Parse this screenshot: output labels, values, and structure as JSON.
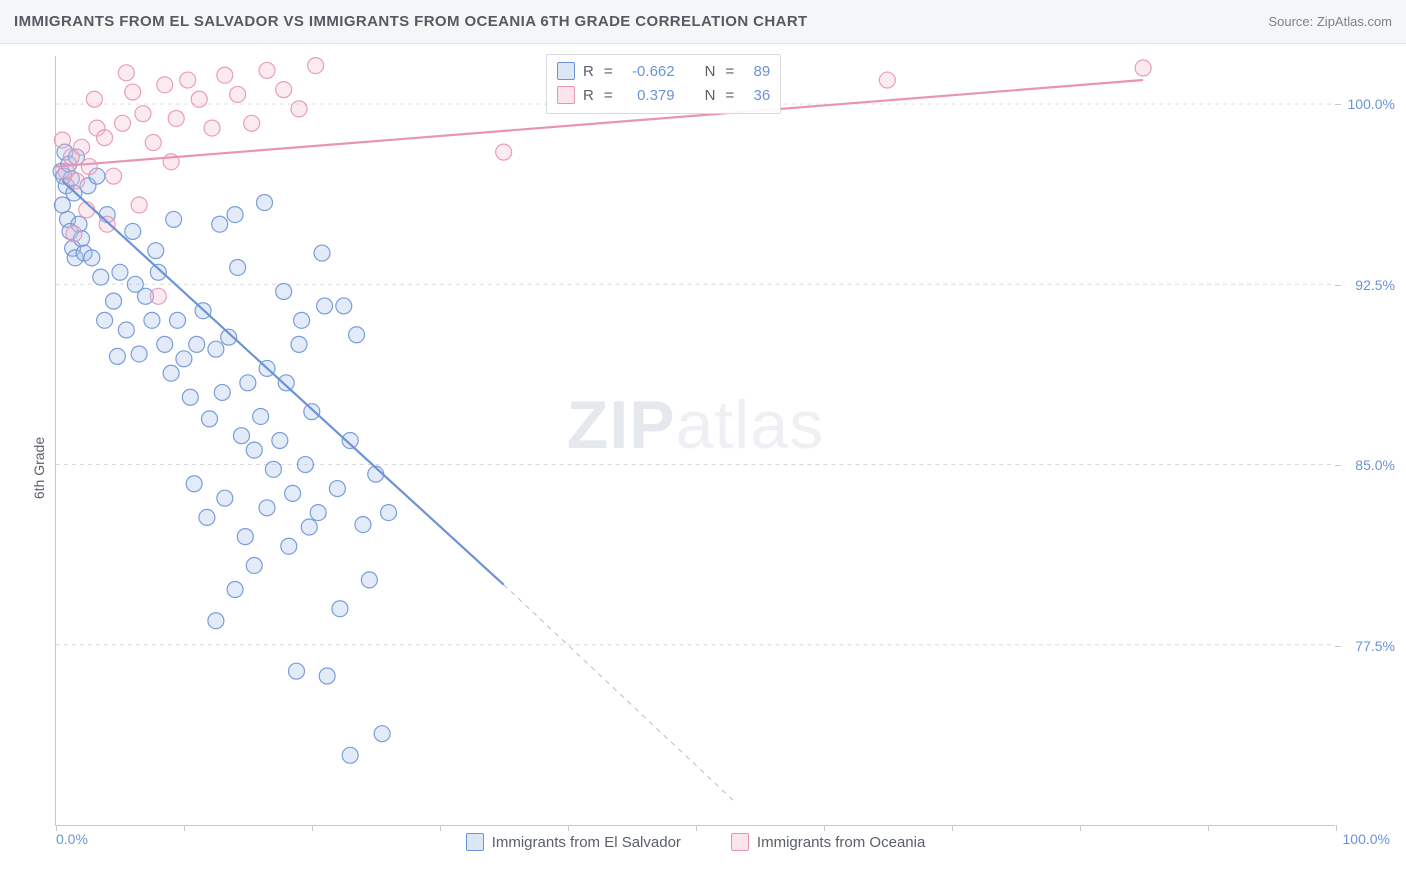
{
  "header": {
    "title": "IMMIGRANTS FROM EL SALVADOR VS IMMIGRANTS FROM OCEANIA 6TH GRADE CORRELATION CHART",
    "source": "Source: ZipAtlas.com"
  },
  "chart": {
    "type": "scatter",
    "ylabel": "6th Grade",
    "background_color": "#ffffff",
    "grid_color": "#d7d9dc",
    "axis_color": "#c5c9cf",
    "tick_label_color": "#6b93d6",
    "label_color": "#5a6068",
    "label_fontsize": 14,
    "xlim": [
      0,
      100
    ],
    "ylim": [
      70,
      102
    ],
    "xticks": [
      0,
      10,
      20,
      30,
      40,
      50,
      60,
      70,
      80,
      90,
      100
    ],
    "xtick_labels": {
      "0": "0.0%",
      "100": "100.0%"
    },
    "yticks": [
      77.5,
      85.0,
      92.5,
      100.0
    ],
    "ytick_labels": [
      "77.5%",
      "85.0%",
      "92.5%",
      "100.0%"
    ],
    "marker_radius": 8,
    "marker_fill_opacity": 0.32,
    "marker_stroke_opacity": 0.9,
    "trend_line_width": 2.2,
    "trend_dash_width": 1,
    "watermark": {
      "bold": "ZIP",
      "rest": "atlas"
    }
  },
  "series": [
    {
      "id": "el_salvador",
      "label": "Immigrants from El Salvador",
      "color": "#6b93d6",
      "fill_color": "#a7c2e8",
      "R": "-0.662",
      "N": "89",
      "trend": {
        "x1": 0.5,
        "y1": 96.8,
        "x2_solid": 35,
        "y2_solid": 80.0,
        "x2_dash": 53,
        "y2_dash": 71.0
      },
      "points": [
        [
          0.4,
          97.2
        ],
        [
          0.6,
          97.0
        ],
        [
          0.8,
          96.6
        ],
        [
          0.7,
          98.0
        ],
        [
          1.0,
          97.5
        ],
        [
          1.2,
          96.9
        ],
        [
          1.4,
          96.3
        ],
        [
          1.6,
          97.8
        ],
        [
          0.5,
          95.8
        ],
        [
          0.9,
          95.2
        ],
        [
          1.1,
          94.7
        ],
        [
          1.3,
          94.0
        ],
        [
          1.5,
          93.6
        ],
        [
          1.8,
          95.0
        ],
        [
          2.0,
          94.4
        ],
        [
          2.2,
          93.8
        ],
        [
          2.5,
          96.6
        ],
        [
          2.8,
          93.6
        ],
        [
          3.2,
          97.0
        ],
        [
          3.5,
          92.8
        ],
        [
          4.0,
          95.4
        ],
        [
          4.5,
          91.8
        ],
        [
          5.0,
          93.0
        ],
        [
          5.5,
          90.6
        ],
        [
          6.0,
          94.7
        ],
        [
          6.5,
          89.6
        ],
        [
          7.0,
          92.0
        ],
        [
          7.5,
          91.0
        ],
        [
          8.0,
          93.0
        ],
        [
          8.5,
          90.0
        ],
        [
          9.0,
          88.8
        ],
        [
          9.5,
          91.0
        ],
        [
          10.0,
          89.4
        ],
        [
          10.5,
          87.8
        ],
        [
          11.0,
          90.0
        ],
        [
          11.5,
          91.4
        ],
        [
          12.0,
          86.9
        ],
        [
          12.5,
          89.8
        ],
        [
          13.0,
          88.0
        ],
        [
          13.5,
          90.3
        ],
        [
          14.0,
          95.4
        ],
        [
          14.5,
          86.2
        ],
        [
          15.0,
          88.4
        ],
        [
          15.5,
          85.6
        ],
        [
          16.0,
          87.0
        ],
        [
          16.5,
          89.0
        ],
        [
          17.0,
          84.8
        ],
        [
          17.5,
          86.0
        ],
        [
          18.0,
          88.4
        ],
        [
          18.5,
          83.8
        ],
        [
          19.0,
          90.0
        ],
        [
          19.5,
          85.0
        ],
        [
          20.0,
          87.2
        ],
        [
          20.5,
          83.0
        ],
        [
          21.0,
          91.6
        ],
        [
          22.0,
          84.0
        ],
        [
          23.0,
          86.0
        ],
        [
          12.8,
          95.0
        ],
        [
          14.2,
          93.2
        ],
        [
          16.3,
          95.9
        ],
        [
          17.8,
          92.2
        ],
        [
          19.2,
          91.0
        ],
        [
          20.8,
          93.8
        ],
        [
          22.5,
          91.6
        ],
        [
          23.5,
          90.4
        ],
        [
          24.0,
          82.5
        ],
        [
          25.0,
          84.6
        ],
        [
          26.0,
          83.0
        ],
        [
          10.8,
          84.2
        ],
        [
          11.8,
          82.8
        ],
        [
          13.2,
          83.6
        ],
        [
          14.8,
          82.0
        ],
        [
          16.5,
          83.2
        ],
        [
          18.2,
          81.6
        ],
        [
          19.8,
          82.4
        ],
        [
          15.5,
          80.8
        ],
        [
          18.8,
          76.4
        ],
        [
          21.2,
          76.2
        ],
        [
          23.0,
          72.9
        ],
        [
          25.5,
          73.8
        ],
        [
          12.5,
          78.5
        ],
        [
          14.0,
          79.8
        ],
        [
          22.2,
          79.0
        ],
        [
          24.5,
          80.2
        ],
        [
          3.8,
          91.0
        ],
        [
          4.8,
          89.5
        ],
        [
          6.2,
          92.5
        ],
        [
          7.8,
          93.9
        ],
        [
          9.2,
          95.2
        ]
      ]
    },
    {
      "id": "oceania",
      "label": "Immigrants from Oceania",
      "color": "#e795b3",
      "fill_color": "#f3bfd0",
      "R": "0.379",
      "N": "36",
      "trend": {
        "x1": 0,
        "y1": 97.4,
        "x2_solid": 85,
        "y2_solid": 101.0,
        "x2_dash": 85,
        "y2_dash": 101.0
      },
      "points": [
        [
          0.8,
          97.2
        ],
        [
          1.2,
          97.8
        ],
        [
          1.6,
          96.8
        ],
        [
          2.0,
          98.2
        ],
        [
          2.6,
          97.4
        ],
        [
          3.2,
          99.0
        ],
        [
          3.8,
          98.6
        ],
        [
          4.5,
          97.0
        ],
        [
          5.2,
          99.2
        ],
        [
          6.0,
          100.5
        ],
        [
          6.8,
          99.6
        ],
        [
          7.6,
          98.4
        ],
        [
          8.5,
          100.8
        ],
        [
          9.4,
          99.4
        ],
        [
          10.3,
          101.0
        ],
        [
          11.2,
          100.2
        ],
        [
          12.2,
          99.0
        ],
        [
          13.2,
          101.2
        ],
        [
          14.2,
          100.4
        ],
        [
          15.3,
          99.2
        ],
        [
          16.5,
          101.4
        ],
        [
          17.8,
          100.6
        ],
        [
          19.0,
          99.8
        ],
        [
          20.3,
          101.6
        ],
        [
          8.0,
          92.0
        ],
        [
          6.5,
          95.8
        ],
        [
          4.0,
          95.0
        ],
        [
          2.4,
          95.6
        ],
        [
          1.4,
          94.6
        ],
        [
          0.5,
          98.5
        ],
        [
          35.0,
          98.0
        ],
        [
          65.0,
          101.0
        ],
        [
          85.0,
          101.5
        ],
        [
          3.0,
          100.2
        ],
        [
          5.5,
          101.3
        ],
        [
          9.0,
          97.6
        ]
      ]
    }
  ],
  "legend_box": {
    "r_label": "R",
    "n_label": "N",
    "eq": "="
  }
}
